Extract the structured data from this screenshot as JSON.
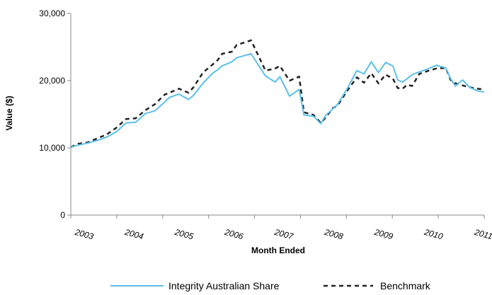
{
  "chart_data": {
    "type": "line",
    "xlabel": "Month Ended",
    "ylabel": "Value ($)",
    "ylim": [
      0,
      30000
    ],
    "yticks": [
      0,
      10000,
      20000,
      30000
    ],
    "ytick_labels": [
      "0",
      "10,000",
      "20,000",
      "30,000"
    ],
    "xtick_labels": [
      "2003",
      "2004",
      "2005",
      "2006",
      "2007",
      "2008",
      "2009",
      "2010",
      "2011"
    ],
    "grid": false,
    "legend_position": "bottom",
    "series": [
      {
        "name": "Integrity Australian Share",
        "color": "#5bc0eb",
        "style": "solid",
        "x": [
          2002.75,
          2002.9,
          2003.1,
          2003.3,
          2003.5,
          2003.7,
          2003.9,
          2004.1,
          2004.3,
          2004.5,
          2004.7,
          2004.8,
          2005.0,
          2005.2,
          2005.3,
          2005.5,
          2005.7,
          2005.8,
          2005.9,
          2006.1,
          2006.2,
          2006.5,
          2006.8,
          2007.0,
          2007.1,
          2007.3,
          2007.5,
          2007.6,
          2007.8,
          2007.95,
          2008.05,
          2008.2,
          2008.3,
          2008.5,
          2008.7,
          2008.85,
          2009.0,
          2009.15,
          2009.3,
          2009.45,
          2009.55,
          2009.65,
          2009.75,
          2009.85,
          2010.0,
          2010.2,
          2010.35,
          2010.55,
          2010.65,
          2010.75,
          2010.9,
          2011.05,
          2011.2,
          2011.35
        ],
        "values": [
          10100,
          10400,
          10700,
          11100,
          11600,
          12400,
          13700,
          13800,
          15100,
          15500,
          16800,
          17500,
          18000,
          17200,
          17800,
          19600,
          21100,
          21600,
          22200,
          22800,
          23400,
          24000,
          20700,
          19800,
          20600,
          17700,
          18700,
          14900,
          14700,
          13600,
          14800,
          15800,
          16500,
          18800,
          21500,
          21000,
          22800,
          21200,
          22700,
          22200,
          20100,
          19800,
          20300,
          20900,
          21300,
          21800,
          22300,
          21900,
          20300,
          19200,
          20100,
          19000,
          18500,
          18300
        ]
      },
      {
        "name": "Benchmark",
        "color": "#222222",
        "style": "dashed",
        "x": [
          2002.75,
          2002.9,
          2003.1,
          2003.3,
          2003.5,
          2003.7,
          2003.9,
          2004.1,
          2004.3,
          2004.5,
          2004.7,
          2004.8,
          2005.0,
          2005.2,
          2005.3,
          2005.5,
          2005.7,
          2005.8,
          2005.9,
          2006.1,
          2006.2,
          2006.5,
          2006.8,
          2007.0,
          2007.1,
          2007.3,
          2007.5,
          2007.6,
          2007.8,
          2007.95,
          2008.05,
          2008.2,
          2008.3,
          2008.5,
          2008.7,
          2008.85,
          2009.0,
          2009.15,
          2009.3,
          2009.45,
          2009.55,
          2009.65,
          2009.75,
          2009.85,
          2010.0,
          2010.2,
          2010.35,
          2010.55,
          2010.65,
          2010.75,
          2010.9,
          2011.05,
          2011.2,
          2011.35
        ],
        "values": [
          10100,
          10600,
          10800,
          11400,
          12000,
          13000,
          14300,
          14400,
          15600,
          16500,
          17900,
          18200,
          18800,
          18200,
          19000,
          21200,
          22400,
          23000,
          24000,
          24300,
          25300,
          26000,
          21500,
          21800,
          22200,
          20000,
          20600,
          15300,
          14900,
          13700,
          14500,
          15900,
          16300,
          18500,
          20500,
          19700,
          21100,
          19600,
          20900,
          20300,
          18900,
          18800,
          19400,
          19200,
          21000,
          21500,
          21800,
          21900,
          20100,
          19600,
          19300,
          19000,
          18800,
          18700
        ]
      }
    ]
  }
}
